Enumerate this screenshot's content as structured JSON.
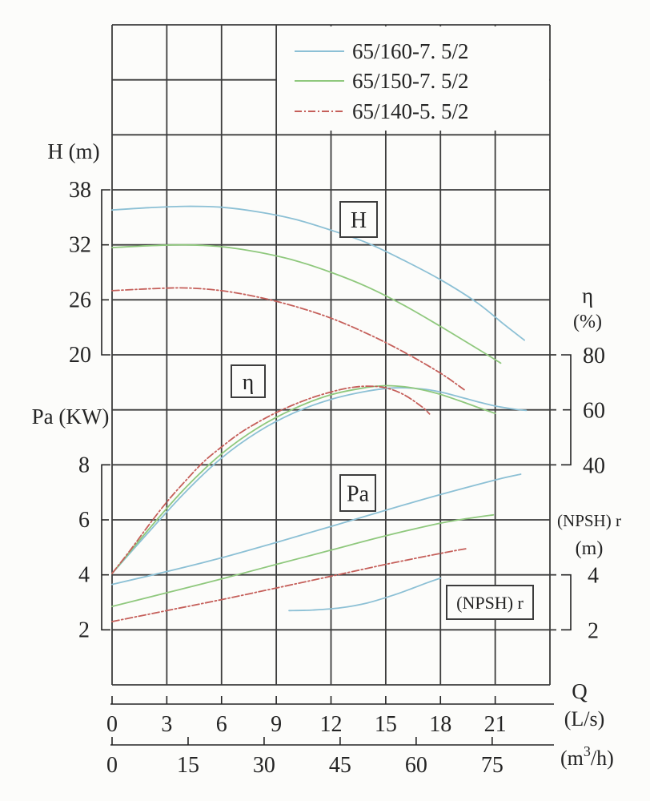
{
  "figure": {
    "bg": "#fcfcfa",
    "grid_color": "#3c3c3c",
    "text_color": "#242424",
    "accent_blue": "#8cc0d5",
    "accent_green": "#8fc87d",
    "accent_red": "#c55f5a"
  },
  "legend": {
    "position": "top-right",
    "items": [
      {
        "label": "65/160-7. 5/2",
        "color": "#8cc0d5",
        "dash": false
      },
      {
        "label": "65/150-7. 5/2",
        "color": "#8fc87d",
        "dash": false
      },
      {
        "label": "65/140-5. 5/2",
        "color": "#c55f5a",
        "dash": true
      }
    ]
  },
  "chart_data": {
    "type": "line",
    "title": "",
    "grid": true,
    "x_axis": {
      "corner_label": "Q",
      "primary_unit": "(L/s)",
      "primary_ticks": [
        0,
        3,
        6,
        9,
        12,
        15,
        18,
        21
      ],
      "primary_range": [
        0,
        24
      ],
      "secondary_unit": "(m³/h)",
      "secondary_unit_parts": [
        "(m",
        "3",
        "/h)"
      ],
      "secondary_ticks": [
        0,
        15,
        30,
        45,
        60,
        75
      ],
      "ls_to_m3h": 3.6
    },
    "y_axes": [
      {
        "id": "H",
        "title": "H (m)",
        "side": "left",
        "ticks": [
          38,
          32,
          26,
          20
        ]
      },
      {
        "id": "Pa",
        "title": "Pa (KW)",
        "side": "left",
        "ticks": [
          8,
          6,
          4,
          2
        ]
      },
      {
        "id": "eta",
        "title": "η",
        "unit": "(%)",
        "side": "right",
        "ticks": [
          80,
          60,
          40
        ]
      },
      {
        "id": "NPSH",
        "title": "(NPSH) r",
        "unit": "(m)",
        "side": "right",
        "ticks": [
          4,
          2
        ]
      }
    ],
    "curve_labels": [
      {
        "text": "H"
      },
      {
        "text": "η"
      },
      {
        "text": "Pa"
      },
      {
        "text": "(NPSH) r"
      }
    ],
    "series": [
      {
        "model": "65/160-7. 5/2",
        "axis": "H",
        "color": "#8cc0d5",
        "dash": false,
        "points": [
          [
            0,
            35.8
          ],
          [
            2,
            36.05
          ],
          [
            4,
            36.2
          ],
          [
            6,
            36.1
          ],
          [
            8,
            35.6
          ],
          [
            10,
            34.8
          ],
          [
            12,
            33.6
          ],
          [
            14,
            32.2
          ],
          [
            16,
            30.3
          ],
          [
            18,
            28.2
          ],
          [
            20,
            25.7
          ],
          [
            21.5,
            23.3
          ],
          [
            22.6,
            21.6
          ]
        ]
      },
      {
        "model": "65/150-7. 5/2",
        "axis": "H",
        "color": "#8fc87d",
        "dash": false,
        "points": [
          [
            0,
            31.7
          ],
          [
            2,
            31.9
          ],
          [
            4,
            32.0
          ],
          [
            6,
            31.8
          ],
          [
            8,
            31.2
          ],
          [
            10,
            30.3
          ],
          [
            12,
            29.0
          ],
          [
            14,
            27.4
          ],
          [
            16,
            25.4
          ],
          [
            18,
            23.1
          ],
          [
            20,
            20.7
          ],
          [
            21.3,
            19.1
          ]
        ]
      },
      {
        "model": "65/140-5. 5/2",
        "axis": "H",
        "color": "#c55f5a",
        "dash": true,
        "points": [
          [
            0,
            27.0
          ],
          [
            2,
            27.2
          ],
          [
            4,
            27.3
          ],
          [
            6,
            27.0
          ],
          [
            8,
            26.3
          ],
          [
            10,
            25.3
          ],
          [
            12,
            24.0
          ],
          [
            14,
            22.3
          ],
          [
            16,
            20.3
          ],
          [
            18,
            18.0
          ],
          [
            19.3,
            16.2
          ]
        ]
      },
      {
        "model": "65/160-7. 5/2",
        "axis": "eta",
        "color": "#8cc0d5",
        "dash": false,
        "points": [
          [
            0,
            0.5
          ],
          [
            2,
            15.5
          ],
          [
            4,
            30
          ],
          [
            6,
            42.5
          ],
          [
            8,
            52
          ],
          [
            10,
            59
          ],
          [
            12,
            63.8
          ],
          [
            14,
            66.8
          ],
          [
            15.5,
            68
          ],
          [
            17,
            67.6
          ],
          [
            18,
            66.5
          ],
          [
            19,
            64.8
          ],
          [
            20,
            63
          ],
          [
            21,
            61.4
          ],
          [
            22,
            60.3
          ],
          [
            22.7,
            59.8
          ]
        ]
      },
      {
        "model": "65/150-7. 5/2",
        "axis": "eta",
        "color": "#8fc87d",
        "dash": false,
        "points": [
          [
            0,
            0.5
          ],
          [
            2,
            16.5
          ],
          [
            4,
            31.5
          ],
          [
            6,
            44
          ],
          [
            8,
            53.5
          ],
          [
            10,
            60.5
          ],
          [
            12,
            65.5
          ],
          [
            14,
            68.2
          ],
          [
            15,
            68.8
          ],
          [
            16,
            68.4
          ],
          [
            17,
            67.3
          ],
          [
            18,
            65.6
          ],
          [
            19,
            63.4
          ],
          [
            20,
            61
          ],
          [
            21,
            58.7
          ]
        ]
      },
      {
        "model": "65/140-5. 5/2",
        "axis": "eta",
        "color": "#c55f5a",
        "dash": true,
        "points": [
          [
            0,
            0.5
          ],
          [
            1,
            9
          ],
          [
            2,
            18
          ],
          [
            3,
            26.5
          ],
          [
            4,
            34
          ],
          [
            5,
            41
          ],
          [
            6,
            46.5
          ],
          [
            7,
            51.5
          ],
          [
            8,
            55.5
          ],
          [
            9,
            59
          ],
          [
            10,
            62
          ],
          [
            11,
            64.5
          ],
          [
            12,
            66.5
          ],
          [
            13,
            68
          ],
          [
            14,
            68.6
          ],
          [
            15,
            68
          ],
          [
            16,
            65.5
          ],
          [
            17,
            61
          ],
          [
            17.4,
            58.5
          ]
        ]
      },
      {
        "model": "65/160-7. 5/2",
        "axis": "Pa",
        "color": "#8cc0d5",
        "dash": false,
        "points": [
          [
            0,
            3.65
          ],
          [
            3,
            4.12
          ],
          [
            6,
            4.62
          ],
          [
            9,
            5.18
          ],
          [
            12,
            5.76
          ],
          [
            15,
            6.35
          ],
          [
            18,
            6.92
          ],
          [
            21,
            7.45
          ],
          [
            22.4,
            7.66
          ]
        ]
      },
      {
        "model": "65/150-7. 5/2",
        "axis": "Pa",
        "color": "#8fc87d",
        "dash": false,
        "points": [
          [
            0,
            2.85
          ],
          [
            3,
            3.35
          ],
          [
            6,
            3.85
          ],
          [
            9,
            4.38
          ],
          [
            12,
            4.9
          ],
          [
            15,
            5.42
          ],
          [
            18,
            5.88
          ],
          [
            20,
            6.1
          ],
          [
            20.9,
            6.18
          ]
        ]
      },
      {
        "model": "65/140-5. 5/2",
        "axis": "Pa",
        "color": "#c55f5a",
        "dash": true,
        "points": [
          [
            0,
            2.3
          ],
          [
            3,
            2.7
          ],
          [
            6,
            3.1
          ],
          [
            9,
            3.52
          ],
          [
            12,
            3.95
          ],
          [
            15,
            4.38
          ],
          [
            18,
            4.78
          ],
          [
            19.4,
            4.95
          ]
        ]
      },
      {
        "model": "65/160-7. 5/2",
        "axis": "NPSH",
        "color": "#8cc0d5",
        "dash": false,
        "points": [
          [
            9.7,
            2.7
          ],
          [
            11,
            2.72
          ],
          [
            12.5,
            2.8
          ],
          [
            14,
            2.98
          ],
          [
            15.5,
            3.28
          ],
          [
            16.5,
            3.52
          ],
          [
            17.3,
            3.72
          ],
          [
            18,
            3.88
          ]
        ]
      }
    ],
    "axis_calibration": {
      "H": {
        "top_value": 38,
        "units_per_row": 6
      },
      "Pa": {
        "top_value": 8,
        "units_per_row": 2
      },
      "eta": {
        "top_value": 80,
        "units_per_row": 20
      },
      "NPSH": {
        "top_value": 4,
        "units_per_row": 2
      },
      "Q_units_per_col": 3
    }
  }
}
